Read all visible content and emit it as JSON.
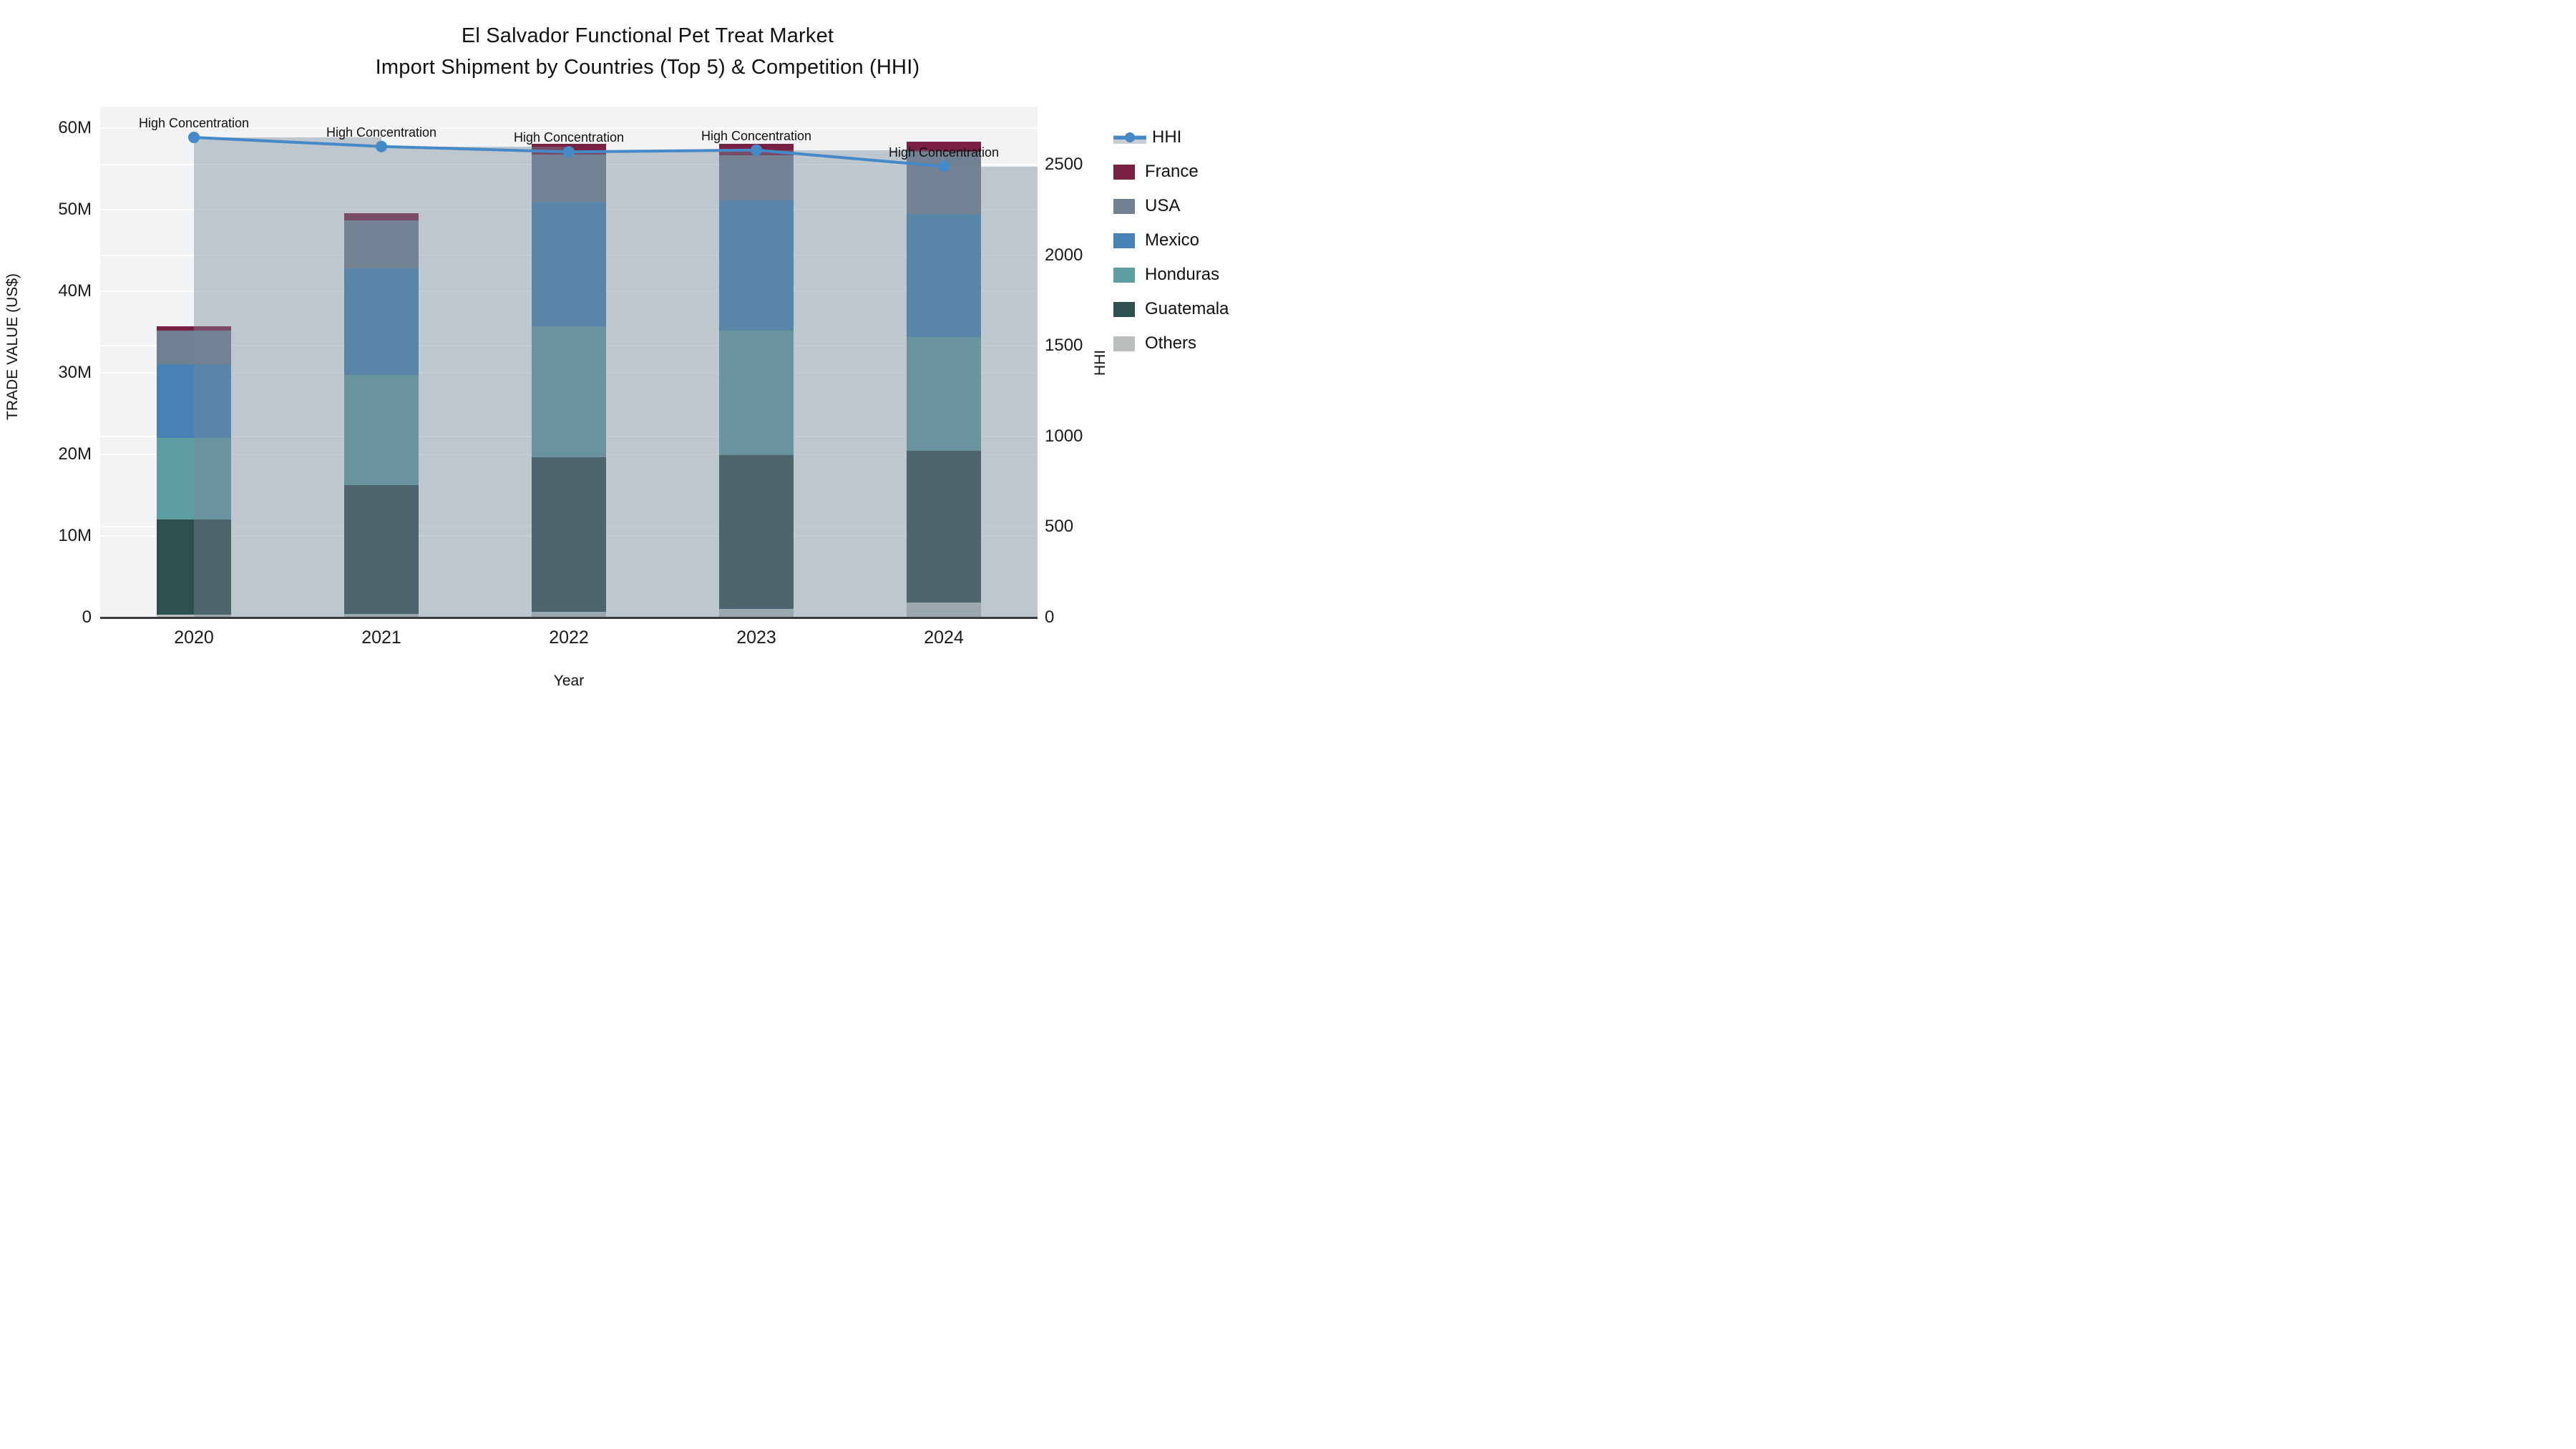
{
  "title": {
    "line1": "El Salvador Functional Pet Treat Market",
    "line2": "Import Shipment by Countries (Top 5) & Competition (HHI)"
  },
  "chart_data": {
    "type": "bar",
    "subtype": "stacked-bars-with-line",
    "categories": [
      "2020",
      "2021",
      "2022",
      "2023",
      "2024"
    ],
    "series": [
      {
        "name": "Others",
        "color": "#b9bdbd",
        "values": [
          0.3,
          0.4,
          0.7,
          1.0,
          1.8
        ]
      },
      {
        "name": "Guatemala",
        "color": "#2f4f4f",
        "values": [
          11.7,
          15.8,
          18.9,
          18.9,
          18.6
        ]
      },
      {
        "name": "Honduras",
        "color": "#5f9ea0",
        "values": [
          10.0,
          13.5,
          16.1,
          15.2,
          13.9
        ]
      },
      {
        "name": "Mexico",
        "color": "#4682b4",
        "values": [
          9.0,
          13.1,
          15.2,
          16.0,
          15.1
        ]
      },
      {
        "name": "USA",
        "color": "#708090",
        "values": [
          4.1,
          5.8,
          5.8,
          5.5,
          7.7
        ]
      },
      {
        "name": "France",
        "color": "#7a2042",
        "values": [
          0.6,
          0.9,
          1.3,
          1.4,
          1.2
        ]
      }
    ],
    "line_series": {
      "name": "HHI",
      "color": "#4589c8",
      "band_color": "rgba(119,136,153,0.42)",
      "values": [
        2650,
        2600,
        2570,
        2580,
        2490
      ]
    },
    "annotations": [
      "High Concentration",
      "High Concentration",
      "High Concentration",
      "High Concentration",
      "High Concentration"
    ],
    "left_axis": {
      "title": "TRADE VALUE (US$)",
      "tick_values": [
        0,
        10,
        20,
        30,
        40,
        50,
        60
      ],
      "tick_labels": [
        "0",
        "10M",
        "20M",
        "30M",
        "40M",
        "50M",
        "60M"
      ],
      "range": [
        0,
        62.5
      ]
    },
    "right_axis": {
      "title": "HHI",
      "tick_values": [
        0,
        500,
        1000,
        1500,
        2000,
        2500
      ],
      "tick_labels": [
        "0",
        "500",
        "1000",
        "1500",
        "2000",
        "2500"
      ],
      "range": [
        0,
        2820
      ]
    },
    "x_axis": {
      "title": "Year"
    },
    "legend_position": "right",
    "grid": true
  },
  "legend": {
    "items": [
      {
        "label": "HHI",
        "kind": "line"
      },
      {
        "label": "France",
        "kind": "box"
      },
      {
        "label": "USA",
        "kind": "box"
      },
      {
        "label": "Mexico",
        "kind": "box"
      },
      {
        "label": "Honduras",
        "kind": "box"
      },
      {
        "label": "Guatemala",
        "kind": "box"
      },
      {
        "label": "Others",
        "kind": "box"
      }
    ]
  }
}
